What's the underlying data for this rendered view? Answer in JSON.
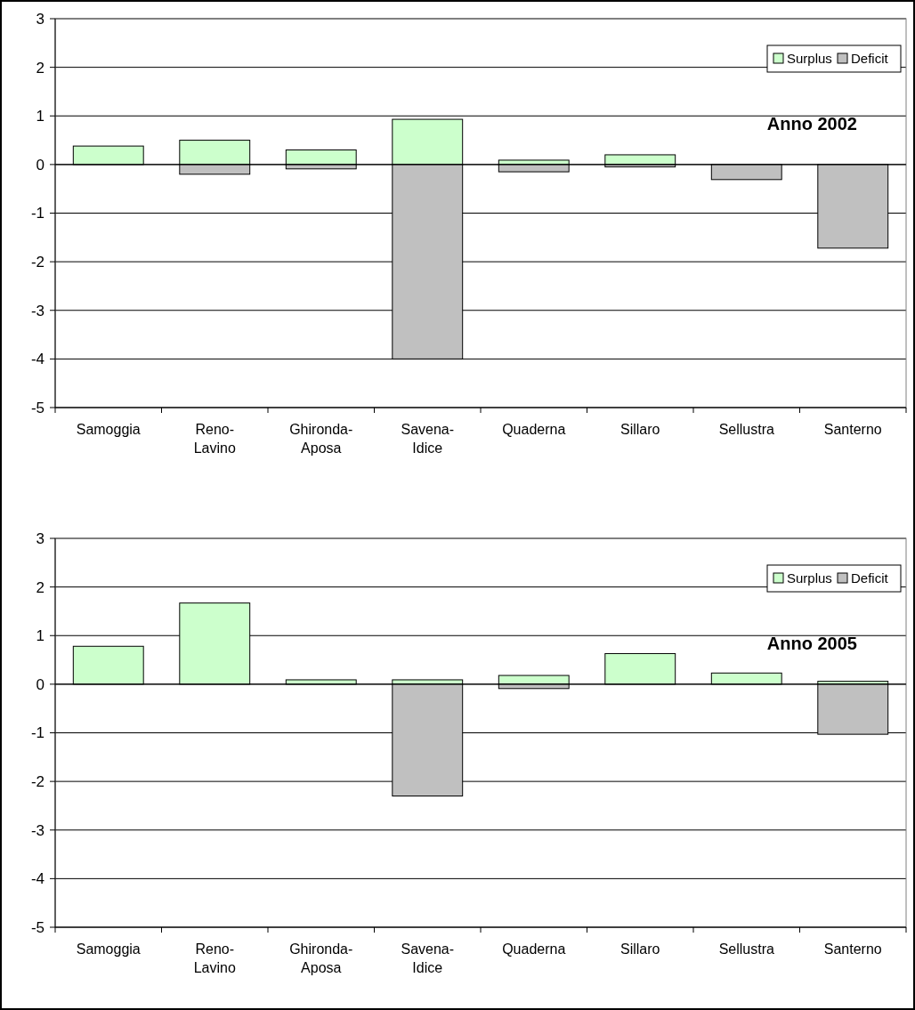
{
  "chart_data": [
    {
      "type": "bar",
      "title": "Anno 2002",
      "stacked": true,
      "categories": [
        "Samoggia",
        "Reno-Lavino",
        "Ghironda-Aposa",
        "Savena-Idice",
        "Quaderna",
        "Sillaro",
        "Sellustra",
        "Santerno"
      ],
      "series": [
        {
          "name": "Surplus",
          "color": "#ccffcc",
          "values": [
            0.38,
            0.5,
            0.3,
            0.93,
            0.09,
            0.2,
            0,
            0
          ]
        },
        {
          "name": "Deficit",
          "color": "#c0c0c0",
          "values": [
            null,
            -0.2,
            -0.09,
            -4.0,
            -0.15,
            -0.05,
            -0.31,
            -1.72
          ]
        }
      ],
      "ylim": [
        -5,
        3
      ],
      "yticks": [
        -5,
        -4,
        -3,
        -2,
        -1,
        0,
        1,
        2,
        3
      ],
      "grid": "y",
      "legend": "top right"
    },
    {
      "type": "bar",
      "title": "Anno 2005",
      "stacked": true,
      "categories": [
        "Samoggia",
        "Reno-Lavino",
        "Ghironda-Aposa",
        "Savena-Idice",
        "Quaderna",
        "Sillaro",
        "Sellustra",
        "Santerno"
      ],
      "series": [
        {
          "name": "Surplus",
          "color": "#ccffcc",
          "values": [
            0.78,
            1.67,
            0.09,
            0.09,
            0.18,
            0.63,
            0.23,
            0.06
          ]
        },
        {
          "name": "Deficit",
          "color": "#c0c0c0",
          "values": [
            0,
            0,
            null,
            -2.3,
            -0.09,
            0,
            0,
            -1.03
          ]
        }
      ],
      "ylim": [
        -5,
        3
      ],
      "yticks": [
        -5,
        -4,
        -3,
        -2,
        -1,
        0,
        1,
        2,
        3
      ],
      "grid": "y",
      "legend": "top right"
    }
  ]
}
